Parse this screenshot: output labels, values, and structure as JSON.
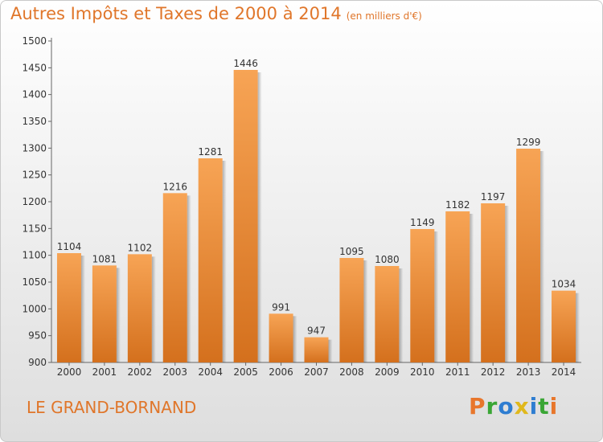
{
  "chart_data": {
    "type": "bar",
    "title": "Autres Impôts et Taxes de 2000 à 2014",
    "subtitle": "(en milliers d'€)",
    "categories": [
      "2000",
      "2001",
      "2002",
      "2003",
      "2004",
      "2005",
      "2006",
      "2007",
      "2008",
      "2009",
      "2010",
      "2011",
      "2012",
      "2013",
      "2014"
    ],
    "values": [
      1104,
      1081,
      1102,
      1216,
      1281,
      1446,
      991,
      947,
      1095,
      1080,
      1149,
      1182,
      1197,
      1299,
      1034
    ],
    "ylim": [
      900,
      1500
    ],
    "yticks": [
      900,
      950,
      1000,
      1050,
      1100,
      1150,
      1200,
      1250,
      1300,
      1350,
      1400,
      1450,
      1500
    ],
    "xlabel": "",
    "ylabel": "",
    "grid": false,
    "colors": {
      "bar_top": "#f7a455",
      "bar_bottom": "#d4701d",
      "text": "#e0762a"
    }
  },
  "footer": {
    "commune": "LE GRAND-BORNAND",
    "logo_text": "Proxiti",
    "logo_colors": [
      "#e8762b",
      "#3aa635",
      "#2e7dd1",
      "#e0b81c",
      "#2e7dd1",
      "#3aa635",
      "#e8762b"
    ]
  }
}
